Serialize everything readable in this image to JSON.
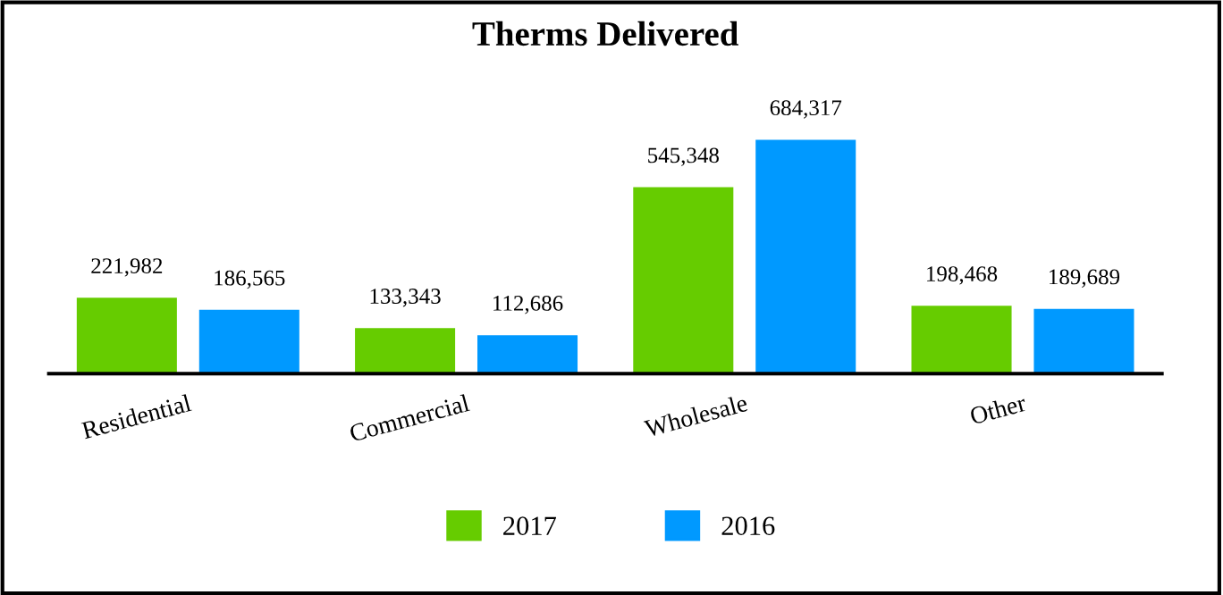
{
  "chart_data": {
    "type": "bar",
    "title": "Therms Delivered",
    "categories": [
      "Residential",
      "Commercial",
      "Wholesale",
      "Other"
    ],
    "series": [
      {
        "name": "2017",
        "color": "#66cc00",
        "values": [
          221982,
          133343,
          545348,
          198468
        ],
        "value_labels": [
          "221,982",
          "133,343",
          "545,348",
          "198,468"
        ]
      },
      {
        "name": "2016",
        "color": "#0099ff",
        "values": [
          186565,
          112686,
          684317,
          189689
        ],
        "value_labels": [
          "186,565",
          "112,686",
          "684,317",
          "189,689"
        ]
      }
    ],
    "legend": "bottom",
    "grid": false
  }
}
